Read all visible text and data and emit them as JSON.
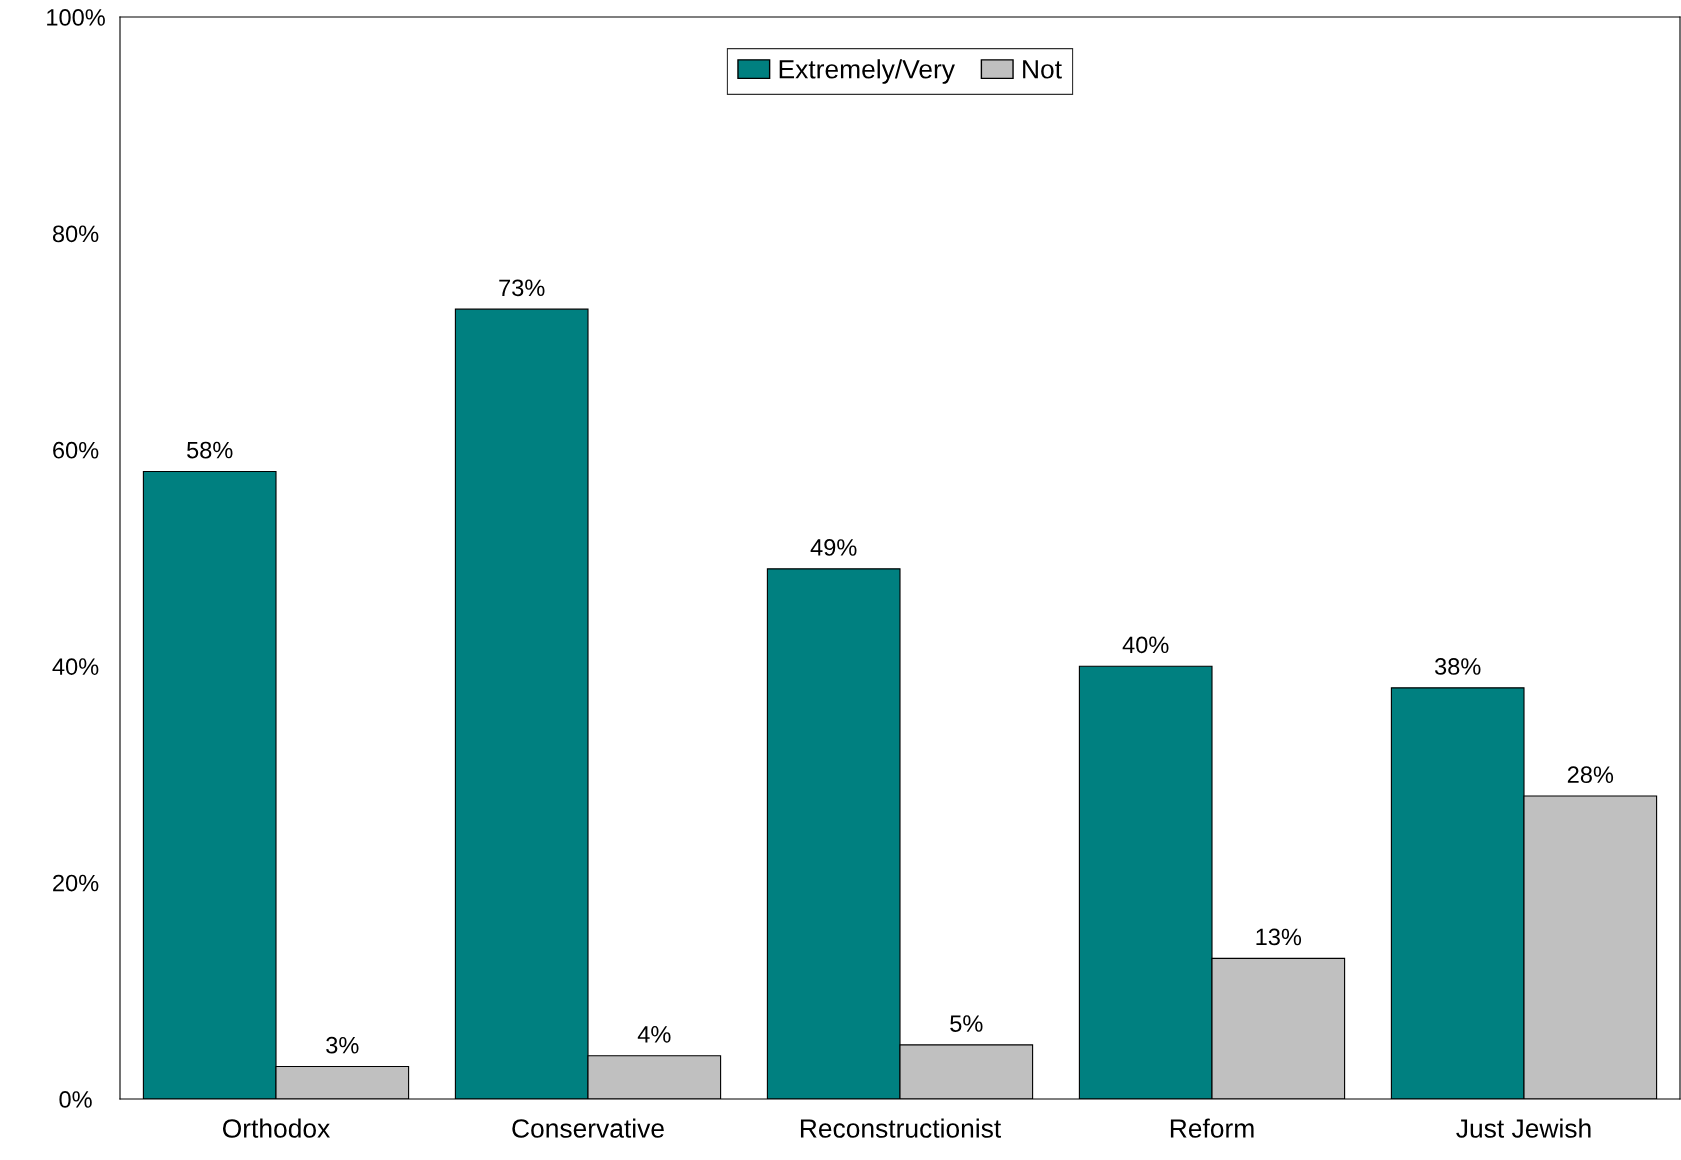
{
  "chart_data": {
    "type": "bar",
    "categories": [
      "Orthodox",
      "Conservative",
      "Reconstructionist",
      "Reform",
      "Just Jewish"
    ],
    "series": [
      {
        "name": "Extremely/Very",
        "color": "#008080",
        "values": [
          58,
          73,
          49,
          40,
          38
        ],
        "value_labels": [
          "58%",
          "73%",
          "49%",
          "40%",
          "38%"
        ]
      },
      {
        "name": "Not",
        "color": "#c0c0c0",
        "values": [
          3,
          4,
          5,
          13,
          28
        ],
        "value_labels": [
          "3%",
          "4%",
          "5%",
          "13%",
          "28%"
        ]
      }
    ],
    "ylim": [
      0,
      100
    ],
    "yticks": [
      {
        "value": 0,
        "label": "0%"
      },
      {
        "value": 20,
        "label": "20%"
      },
      {
        "value": 40,
        "label": "40%"
      },
      {
        "value": 60,
        "label": "60%"
      },
      {
        "value": 80,
        "label": "80%"
      },
      {
        "value": 100,
        "label": "100%"
      }
    ],
    "grid": false,
    "legend": "top"
  }
}
